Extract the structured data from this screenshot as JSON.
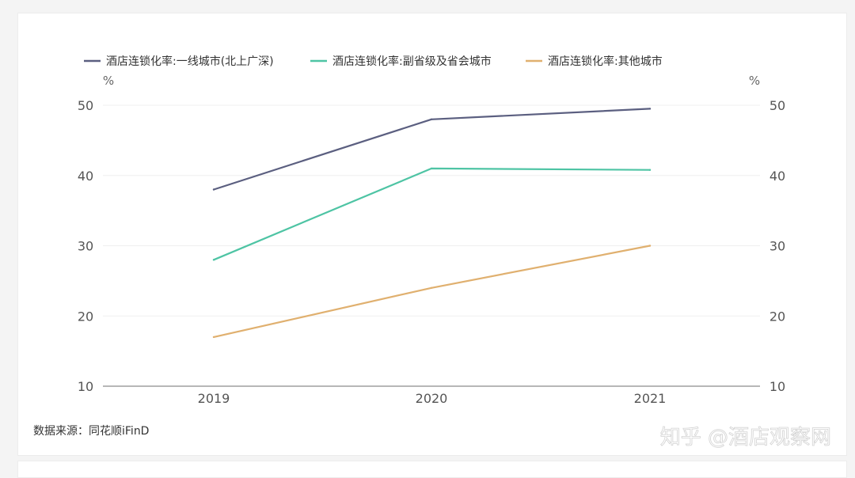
{
  "chart_data": {
    "type": "line",
    "x": [
      "2019",
      "2020",
      "2021"
    ],
    "series": [
      {
        "name": "酒店连锁化率:一线城市(北上广深)",
        "values": [
          38,
          48,
          49.5
        ],
        "color": "#5b5f80"
      },
      {
        "name": "酒店连锁化率:副省级及省会城市",
        "values": [
          28,
          41,
          40.8
        ],
        "color": "#4ec4a4"
      },
      {
        "name": "酒店连锁化率:其他城市",
        "values": [
          17,
          24,
          30
        ],
        "color": "#e0b06f"
      }
    ],
    "ylim": [
      10,
      50
    ],
    "yticks": [
      10,
      20,
      30,
      40,
      50
    ],
    "y_unit_left": "%",
    "y_unit_right": "%",
    "grid": true,
    "legend_position": "top-left"
  },
  "source": "数据来源：同花顺iFinD",
  "watermark": "知乎 @酒店观察网"
}
